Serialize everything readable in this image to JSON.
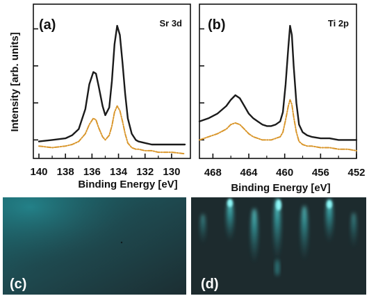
{
  "figure": {
    "ylabel": "Intensity [arb. units]",
    "colors": {
      "black_series": "#1a1a1a",
      "orange_series": "#d9962b",
      "rheed_background": "#1e3236",
      "rheed_streak": "#55dde0"
    }
  },
  "chart_data": [
    {
      "panel": "(a)",
      "element": "Sr 3d",
      "type": "line",
      "xlabel": "Binding Energy [eV]",
      "ylabel": "Intensity [arb. units]",
      "xlim": [
        140,
        129
      ],
      "x_reversed": true,
      "ylim": [
        0,
        1
      ],
      "xticks": [
        "140",
        "138",
        "136",
        "134",
        "132",
        "130"
      ],
      "xtick_values": [
        140,
        138,
        136,
        134,
        132,
        130
      ],
      "grid": false,
      "series": [
        {
          "style": "solid",
          "color": "#1a1a1a",
          "x": [
            140,
            139,
            138,
            137.5,
            137,
            136.5,
            136.2,
            135.9,
            135.7,
            135.5,
            135.2,
            135,
            134.7,
            134.5,
            134.3,
            134.1,
            133.9,
            133.7,
            133.5,
            133.3,
            133,
            132.7,
            132.5,
            132,
            131.5,
            131,
            130,
            129
          ],
          "y": [
            0.11,
            0.12,
            0.13,
            0.15,
            0.19,
            0.32,
            0.48,
            0.56,
            0.55,
            0.47,
            0.34,
            0.28,
            0.33,
            0.5,
            0.74,
            0.86,
            0.8,
            0.62,
            0.42,
            0.26,
            0.16,
            0.12,
            0.11,
            0.1,
            0.09,
            0.09,
            0.09,
            0.09
          ]
        },
        {
          "style": "dash-dot",
          "color": "#d9962b",
          "x": [
            140,
            139,
            138,
            137.5,
            137,
            136.5,
            136.2,
            135.9,
            135.7,
            135.5,
            135.2,
            135,
            134.7,
            134.5,
            134.3,
            134.1,
            133.9,
            133.7,
            133.5,
            133.3,
            133,
            132.7,
            132.5,
            132,
            131.5,
            131,
            130,
            129
          ],
          "y": [
            0.08,
            0.07,
            0.08,
            0.09,
            0.11,
            0.16,
            0.22,
            0.26,
            0.25,
            0.2,
            0.14,
            0.12,
            0.15,
            0.21,
            0.3,
            0.34,
            0.31,
            0.24,
            0.16,
            0.1,
            0.07,
            0.06,
            0.06,
            0.05,
            0.05,
            0.04,
            0.04,
            0.03
          ]
        }
      ]
    },
    {
      "panel": "(b)",
      "element": "Ti 2p",
      "type": "line",
      "xlabel": "Binding Energy [eV]",
      "ylabel": "",
      "xlim": [
        469.5,
        452
      ],
      "x_reversed": true,
      "ylim": [
        0,
        1
      ],
      "xticks": [
        "468",
        "464",
        "460",
        "456",
        "452"
      ],
      "xtick_values": [
        468,
        464,
        460,
        456,
        452
      ],
      "grid": false,
      "series": [
        {
          "style": "solid",
          "color": "#1a1a1a",
          "x": [
            469.5,
            468.5,
            467.5,
            466.5,
            466,
            465.5,
            465,
            464.5,
            464,
            463.5,
            463,
            462.5,
            462,
            461.5,
            461,
            460.5,
            460.2,
            459.9,
            459.6,
            459.4,
            459.2,
            459,
            458.7,
            458.4,
            458,
            457.5,
            457,
            456,
            455,
            454,
            453,
            452
          ],
          "y": [
            0.24,
            0.26,
            0.29,
            0.34,
            0.38,
            0.41,
            0.39,
            0.34,
            0.29,
            0.26,
            0.24,
            0.22,
            0.21,
            0.21,
            0.22,
            0.24,
            0.3,
            0.48,
            0.72,
            0.86,
            0.8,
            0.6,
            0.36,
            0.22,
            0.17,
            0.15,
            0.14,
            0.13,
            0.13,
            0.12,
            0.12,
            0.12
          ]
        },
        {
          "style": "dash-dot",
          "color": "#d9962b",
          "x": [
            469.5,
            468.5,
            467.5,
            466.5,
            466,
            465.5,
            465,
            464.5,
            464,
            463.5,
            463,
            462.5,
            462,
            461.5,
            461,
            460.5,
            460.2,
            459.9,
            459.6,
            459.4,
            459.2,
            459,
            458.7,
            458.4,
            458,
            457.5,
            457,
            456,
            455,
            454,
            453,
            452
          ],
          "y": [
            0.12,
            0.14,
            0.16,
            0.19,
            0.22,
            0.23,
            0.22,
            0.19,
            0.16,
            0.14,
            0.13,
            0.12,
            0.12,
            0.12,
            0.13,
            0.14,
            0.17,
            0.25,
            0.34,
            0.38,
            0.35,
            0.27,
            0.17,
            0.11,
            0.09,
            0.08,
            0.08,
            0.07,
            0.07,
            0.06,
            0.06,
            0.05
          ]
        }
      ]
    }
  ],
  "images": [
    {
      "panel": "(c)",
      "pattern": "diffuse"
    },
    {
      "panel": "(d)",
      "pattern": "streaks"
    }
  ]
}
